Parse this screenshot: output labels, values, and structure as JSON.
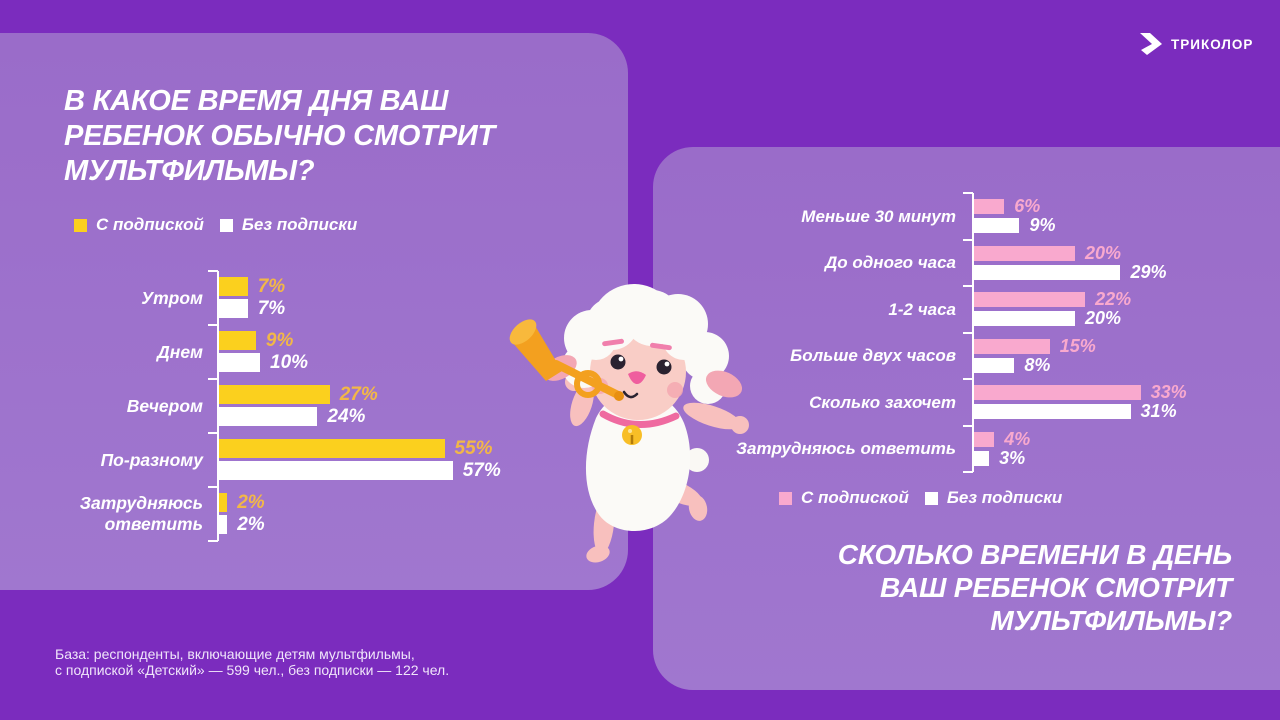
{
  "brand": {
    "name": "ТРИКОЛОР"
  },
  "left_panel": {
    "title_lines": [
      "В КАКОЕ ВРЕМЯ ДНЯ ВАШ",
      "РЕБЕНОК ОБЫЧНО СМОТРИТ",
      "МУЛЬТФИЛЬМЫ?"
    ],
    "legend": [
      {
        "label": "С подпиской",
        "color": "#FBD01E"
      },
      {
        "label": "Без подписки",
        "color": "#FFFFFF"
      }
    ]
  },
  "right_panel": {
    "title_lines": [
      "СКОЛЬКО ВРЕМЕНИ В ДЕНЬ",
      "ВАШ РЕБЕНОК СМОТРИТ",
      "МУЛЬТФИЛЬМЫ?"
    ],
    "legend": [
      {
        "label": "С подпиской",
        "color": "#F9A9CE"
      },
      {
        "label": "Без подписки",
        "color": "#FFFFFF"
      }
    ]
  },
  "footnote": {
    "lines": [
      "База: респонденты,  включающие детям мультфильмы,",
      "с подпиской  «Детский»  — 599 чел., без подписки  — 122 чел."
    ]
  },
  "mascot": {
    "description": "white sheep mascot playing an orange trumpet"
  },
  "colors": {
    "background": "#7B2CBE",
    "panel": "#9C70CC",
    "bar_yellow": "#FBD01E",
    "bar_pink": "#F9A9CE",
    "bar_white": "#FFFFFF",
    "value_yellow_text": "#F2B747",
    "value_pink_text": "#F9A9CE",
    "footnote_text": "#F0E5FA"
  },
  "chart_data": [
    {
      "type": "bar",
      "orientation": "horizontal",
      "title": "В какое время дня ваш ребенок обычно смотрит мультфильмы?",
      "unit": "%",
      "categories": [
        "Утром",
        "Днем",
        "Вечером",
        "По-разному",
        "Затрудняюсь ответить"
      ],
      "series": [
        {
          "name": "С подпиской",
          "color": "#FBD01E",
          "values": [
            7,
            9,
            27,
            55,
            2
          ]
        },
        {
          "name": "Без подписки",
          "color": "#FFFFFF",
          "values": [
            7,
            10,
            24,
            57,
            2
          ]
        }
      ],
      "xlim": [
        0,
        60
      ],
      "value_labels": true,
      "legend_position": "top",
      "grid": false
    },
    {
      "type": "bar",
      "orientation": "horizontal",
      "title": "Сколько времени в день ваш ребенок смотрит мультфильмы?",
      "unit": "%",
      "categories": [
        "Меньше 30 минут",
        "До одного часа",
        "1-2 часа",
        "Больше двух часов",
        "Сколько захочет",
        "Затрудняюсь ответить"
      ],
      "series": [
        {
          "name": "С подпиской",
          "color": "#F9A9CE",
          "values": [
            6,
            20,
            22,
            15,
            33,
            4
          ]
        },
        {
          "name": "Без подписки",
          "color": "#FFFFFF",
          "values": [
            9,
            29,
            20,
            8,
            31,
            3
          ]
        }
      ],
      "xlim": [
        0,
        35
      ],
      "value_labels": true,
      "legend_position": "bottom",
      "grid": false
    }
  ]
}
